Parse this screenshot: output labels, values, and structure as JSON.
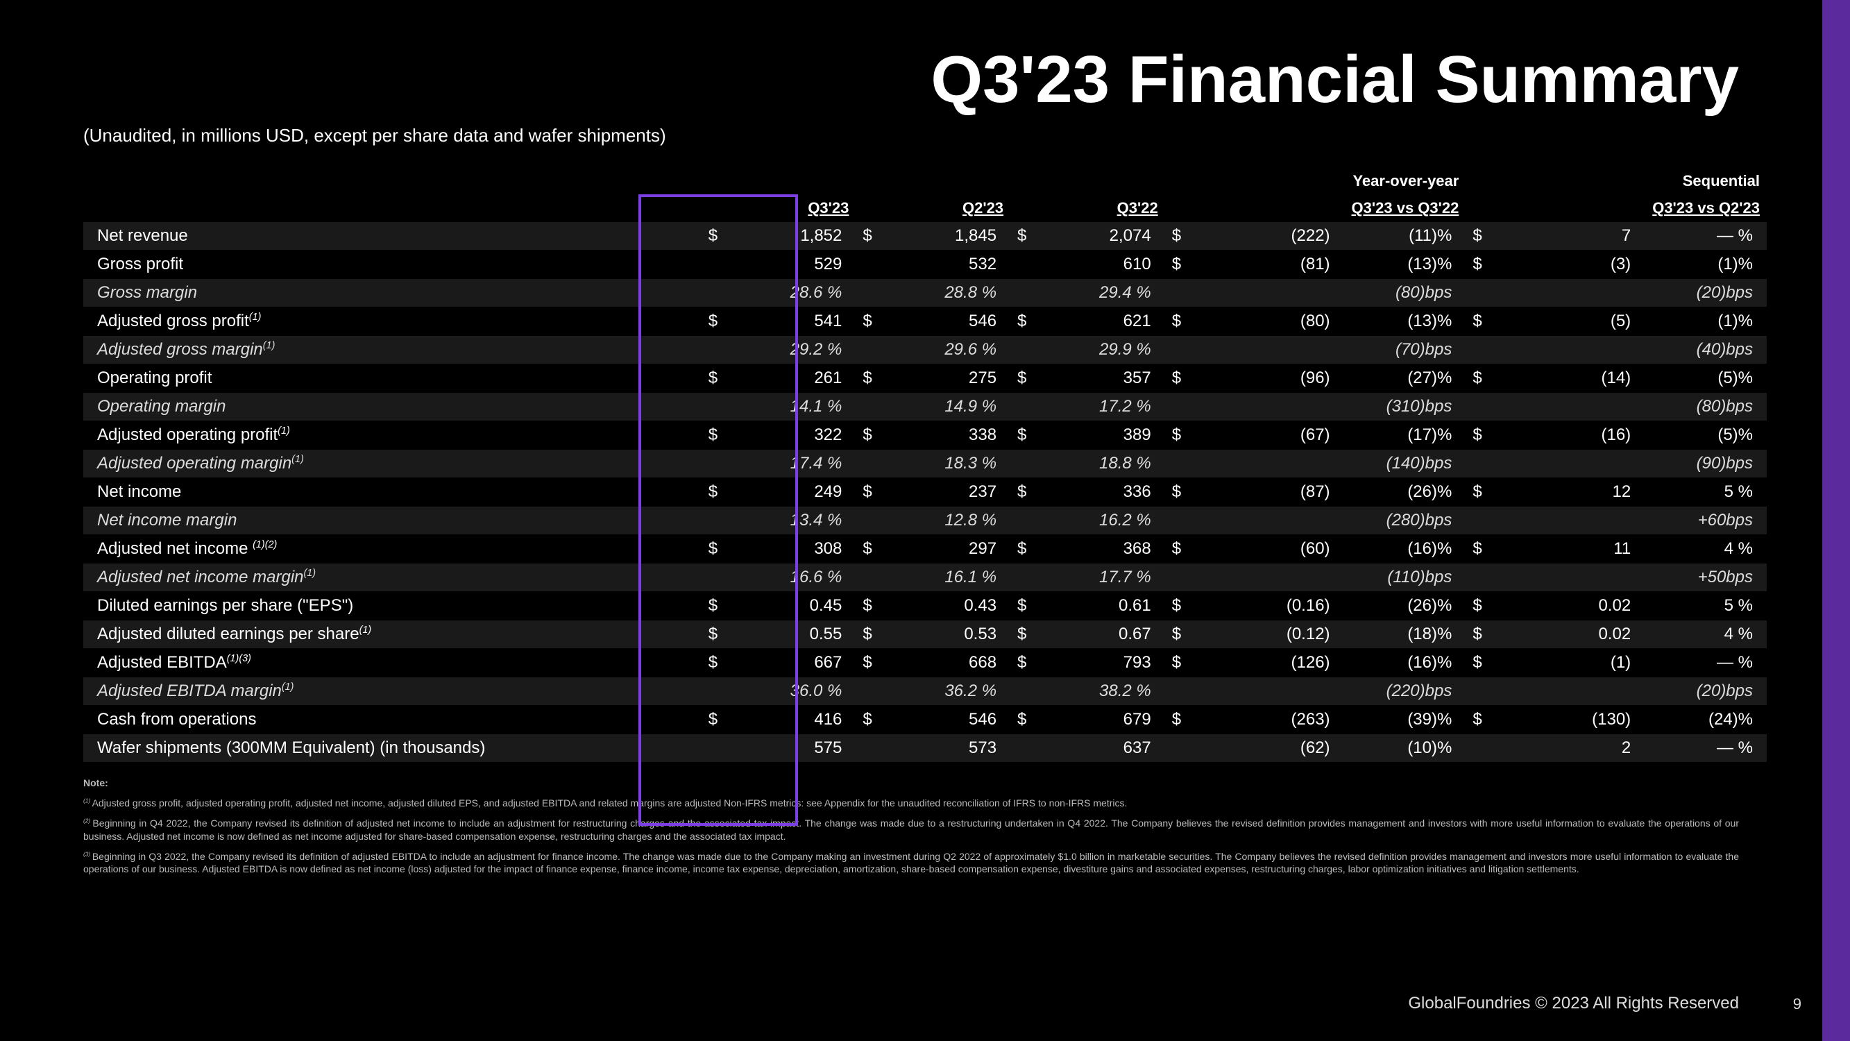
{
  "page": {
    "title": "Q3'23 Financial Summary",
    "subtitle": "(Unaudited, in millions USD, except per share data and wafer shipments)",
    "footer": "GlobalFoundries © 2023 All Rights Reserved",
    "pagenum": "9",
    "accent_color": "#7b3fe4",
    "background_color": "#000000",
    "text_color": "#ffffff",
    "sidebar_color": "#5b2a9d"
  },
  "table": {
    "group_headers": {
      "yoy": "Year-over-year",
      "seq": "Sequential"
    },
    "col_headers": {
      "q3_23": "Q3'23",
      "q2_23": "Q2'23",
      "q3_22": "Q3'22",
      "yoy": "Q3'23 vs Q3'22",
      "seq": "Q3'23 vs Q2'23"
    },
    "rows": [
      {
        "label": "Net revenue",
        "shade": true,
        "q3_23_sym": "$",
        "q3_23": "1,852",
        "q2_23_sym": "$",
        "q2_23": "1,845",
        "q3_22_sym": "$",
        "q3_22": "2,074",
        "yoy_sym": "$",
        "yoy_val": "(222)",
        "yoy_pct": "(11)%",
        "seq_sym": "$",
        "seq_val": "7",
        "seq_pct": "— %"
      },
      {
        "label": "Gross profit",
        "q3_23": "529",
        "q2_23": "532",
        "q3_22": "610",
        "yoy_sym": "$",
        "yoy_val": "(81)",
        "yoy_pct": "(13)%",
        "seq_sym": "$",
        "seq_val": "(3)",
        "seq_pct": "(1)%"
      },
      {
        "label": "Gross margin",
        "italic": true,
        "shade": true,
        "q3_23": "28.6 %",
        "q2_23": "28.8 %",
        "q3_22": "29.4 %",
        "yoy_pct": "(80)bps",
        "seq_pct": "(20)bps"
      },
      {
        "label": "Adjusted gross profit",
        "sup": "(1)",
        "q3_23_sym": "$",
        "q3_23": "541",
        "q2_23_sym": "$",
        "q2_23": "546",
        "q3_22_sym": "$",
        "q3_22": "621",
        "yoy_sym": "$",
        "yoy_val": "(80)",
        "yoy_pct": "(13)%",
        "seq_sym": "$",
        "seq_val": "(5)",
        "seq_pct": "(1)%"
      },
      {
        "label": "Adjusted gross margin",
        "sup": "(1)",
        "italic": true,
        "shade": true,
        "q3_23": "29.2 %",
        "q2_23": "29.6 %",
        "q3_22": "29.9 %",
        "yoy_pct": "(70)bps",
        "seq_pct": "(40)bps"
      },
      {
        "label": "Operating profit",
        "q3_23_sym": "$",
        "q3_23": "261",
        "q2_23_sym": "$",
        "q2_23": "275",
        "q3_22_sym": "$",
        "q3_22": "357",
        "yoy_sym": "$",
        "yoy_val": "(96)",
        "yoy_pct": "(27)%",
        "seq_sym": "$",
        "seq_val": "(14)",
        "seq_pct": "(5)%"
      },
      {
        "label": "Operating margin",
        "italic": true,
        "shade": true,
        "q3_23": "14.1 %",
        "q2_23": "14.9 %",
        "q3_22": "17.2 %",
        "yoy_pct": "(310)bps",
        "seq_pct": "(80)bps"
      },
      {
        "label": "Adjusted operating profit",
        "sup": "(1)",
        "q3_23_sym": "$",
        "q3_23": "322",
        "q2_23_sym": "$",
        "q2_23": "338",
        "q3_22_sym": "$",
        "q3_22": "389",
        "yoy_sym": "$",
        "yoy_val": "(67)",
        "yoy_pct": "(17)%",
        "seq_sym": "$",
        "seq_val": "(16)",
        "seq_pct": "(5)%"
      },
      {
        "label": "Adjusted operating margin",
        "sup": "(1)",
        "italic": true,
        "shade": true,
        "q3_23": "17.4 %",
        "q2_23": "18.3 %",
        "q3_22": "18.8 %",
        "yoy_pct": "(140)bps",
        "seq_pct": "(90)bps"
      },
      {
        "label": "Net income",
        "q3_23_sym": "$",
        "q3_23": "249",
        "q2_23_sym": "$",
        "q2_23": "237",
        "q3_22_sym": "$",
        "q3_22": "336",
        "yoy_sym": "$",
        "yoy_val": "(87)",
        "yoy_pct": "(26)%",
        "seq_sym": "$",
        "seq_val": "12",
        "seq_pct": "5 %"
      },
      {
        "label": "Net income margin",
        "italic": true,
        "shade": true,
        "q3_23": "13.4 %",
        "q2_23": "12.8 %",
        "q3_22": "16.2 %",
        "yoy_pct": "(280)bps",
        "seq_pct": "+60bps"
      },
      {
        "label": "Adjusted net income ",
        "sup": "(1)(2)",
        "q3_23_sym": "$",
        "q3_23": "308",
        "q2_23_sym": "$",
        "q2_23": "297",
        "q3_22_sym": "$",
        "q3_22": "368",
        "yoy_sym": "$",
        "yoy_val": "(60)",
        "yoy_pct": "(16)%",
        "seq_sym": "$",
        "seq_val": "11",
        "seq_pct": "4 %"
      },
      {
        "label": "Adjusted net income margin",
        "sup": "(1)",
        "italic": true,
        "shade": true,
        "q3_23": "16.6 %",
        "q2_23": "16.1 %",
        "q3_22": "17.7 %",
        "yoy_pct": "(110)bps",
        "seq_pct": "+50bps"
      },
      {
        "label": "Diluted earnings per share (\"EPS\")",
        "q3_23_sym": "$",
        "q3_23": "0.45",
        "q2_23_sym": "$",
        "q2_23": "0.43",
        "q3_22_sym": "$",
        "q3_22": "0.61",
        "yoy_sym": "$",
        "yoy_val": "(0.16)",
        "yoy_pct": "(26)%",
        "seq_sym": "$",
        "seq_val": "0.02",
        "seq_pct": "5 %"
      },
      {
        "label": "Adjusted diluted earnings per share",
        "sup": "(1)",
        "shade": true,
        "indent": true,
        "q3_23_sym": "$",
        "q3_23": "0.55",
        "q2_23_sym": "$",
        "q2_23": "0.53",
        "q3_22_sym": "$",
        "q3_22": "0.67",
        "yoy_sym": "$",
        "yoy_val": "(0.12)",
        "yoy_pct": "(18)%",
        "seq_sym": "$",
        "seq_val": "0.02",
        "seq_pct": "4 %"
      },
      {
        "label": "Adjusted EBITDA",
        "sup": "(1)(3)",
        "indent": true,
        "q3_23_sym": "$",
        "q3_23": "667",
        "q2_23_sym": "$",
        "q2_23": "668",
        "q3_22_sym": "$",
        "q3_22": "793",
        "yoy_sym": "$",
        "yoy_val": "(126)",
        "yoy_pct": "(16)%",
        "seq_sym": "$",
        "seq_val": "(1)",
        "seq_pct": "— %"
      },
      {
        "label": "Adjusted EBITDA margin",
        "sup": "(1)",
        "italic": true,
        "shade": true,
        "q3_23": "36.0 %",
        "q2_23": "36.2 %",
        "q3_22": "38.2 %",
        "yoy_pct": "(220)bps",
        "seq_pct": "(20)bps"
      },
      {
        "label": "Cash from operations",
        "q3_23_sym": "$",
        "q3_23": "416",
        "q2_23_sym": "$",
        "q2_23": "546",
        "q3_22_sym": "$",
        "q3_22": "679",
        "yoy_sym": "$",
        "yoy_val": "(263)",
        "yoy_pct": "(39)%",
        "seq_sym": "$",
        "seq_val": "(130)",
        "seq_pct": "(24)%"
      },
      {
        "label": "Wafer shipments (300MM Equivalent) (in thousands)",
        "shade": true,
        "q3_23": "575",
        "q2_23": "573",
        "q3_22": "637",
        "yoy_val": "(62)",
        "yoy_pct": "(10)%",
        "seq_val": "2",
        "seq_pct": "— %"
      }
    ]
  },
  "notes": {
    "heading": "Note:",
    "items": [
      {
        "num": "(1)",
        "text": "Adjusted gross profit, adjusted operating profit, adjusted net income,  adjusted diluted EPS, and adjusted EBITDA and related margins are adjusted Non-IFRS metrics: see Appendix for the unaudited reconciliation of IFRS to non-IFRS metrics."
      },
      {
        "num": "(2)",
        "text": "Beginning in Q4 2022, the Company revised its definition of adjusted  net income to include an adjustment for restructuring charges and the associated tax impact. The change was made due to a restructuring undertaken in Q4 2022.  The Company believes the revised definition provides management and investors with more useful information to evaluate the operations of our business.  Adjusted net income is now defined as net income adjusted for share-based compensation expense, restructuring charges and the associated tax impact."
      },
      {
        "num": "(3)",
        "text": "Beginning in Q3 2022, the Company revised its definition of adjusted EBITDA to include an adjustment for finance income. The change was made due to the Company making an investment during Q2 2022 of approximately $1.0 billion in marketable securities. The Company believes the revised definition provides management and investors more useful information to evaluate the operations of our business. Adjusted EBITDA is now defined as net income (loss) adjusted for the impact of finance expense, finance income, income tax expense, depreciation, amortization, share-based compensation expense, divestiture gains and associated expenses, restructuring charges, labor optimization initiatives and litigation settlements."
      }
    ]
  }
}
